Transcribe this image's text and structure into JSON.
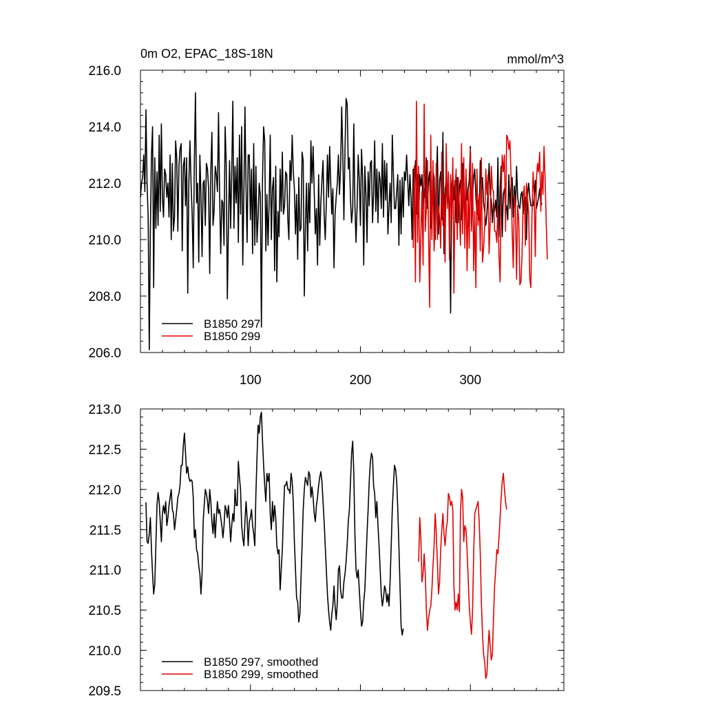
{
  "chart_data": [
    {
      "type": "line",
      "title": "0m O2, EPAC_18S-18N",
      "units": "mmol/m^3",
      "xlim": [
        0,
        385
      ],
      "ylim": [
        206,
        216
      ],
      "xticks": [
        100,
        200,
        300
      ],
      "xtick_labels": [
        "100",
        "200",
        "300"
      ],
      "yticks": [
        206,
        208,
        210,
        212,
        214,
        216
      ],
      "ytick_labels": [
        "206.0",
        "208.0",
        "210.0",
        "212.0",
        "214.0",
        "216.0"
      ],
      "legend_position": "bottom-left",
      "series": [
        {
          "name": "B1850 297",
          "color": "#000000",
          "x_start": 0,
          "values": [
            211.5,
            212.0,
            212.2,
            213.0,
            211.7,
            214.6,
            212.0,
            210.8,
            206.1,
            210.3,
            213.0,
            214.0,
            208.3,
            212.9,
            210.4,
            212.4,
            210.5,
            213.7,
            211.0,
            214.1,
            211.5,
            210.8,
            212.5,
            212.3,
            211.5,
            212.0,
            210.8,
            213.0,
            210.0,
            212.7,
            210.3,
            210.8,
            213.5,
            212.9,
            210.3,
            212.6,
            213.2,
            213.4,
            209.6,
            212.6,
            212.9,
            211.2,
            212.9,
            208.1,
            212.0,
            213.5,
            212.0,
            210.9,
            209.0,
            212.8,
            215.2,
            211.3,
            212.0,
            209.2,
            213.0,
            211.6,
            209.4,
            212.0,
            212.1,
            210.5,
            212.7,
            212.5,
            211.8,
            208.8,
            212.4,
            213.8,
            210.5,
            211.0,
            212.6,
            212.3,
            211.7,
            214.5,
            211.6,
            209.5,
            211.4,
            211.3,
            209.8,
            214.0,
            212.7,
            207.9,
            210.4,
            212.8,
            210.4,
            212.4,
            214.9,
            210.4,
            212.6,
            211.3,
            212.9,
            209.9,
            213.7,
            210.9,
            214.0,
            209.1,
            211.6,
            214.7,
            211.8,
            209.9,
            213.0,
            213.0,
            210.7,
            212.5,
            209.5,
            213.4,
            209.8,
            212.6,
            209.9,
            210.8,
            212.0,
            211.6,
            206.9,
            212.1,
            214.0,
            213.5,
            209.6,
            211.6,
            209.8,
            211.3,
            213.7,
            210.0,
            211.8,
            212.2,
            208.9,
            212.6,
            208.5,
            211.0,
            210.1,
            212.5,
            211.0,
            213.1,
            210.9,
            211.2,
            212.4,
            212.3,
            210.7,
            210.0,
            212.8,
            212.1,
            213.7,
            212.4,
            211.8,
            210.2,
            211.6,
            209.3,
            212.2,
            210.3,
            210.4,
            213.1,
            212.8,
            208.0,
            210.5,
            212.0,
            209.6,
            212.0,
            210.6,
            213.5,
            212.0,
            213.3,
            211.7,
            210.2,
            211.1,
            209.1,
            212.3,
            209.8,
            211.3,
            212.1,
            212.8,
            210.9,
            210.0,
            211.3,
            213.0,
            211.5,
            213.3,
            212.0,
            210.9,
            211.8,
            209.0,
            210.9,
            211.5,
            212.0,
            213.0,
            211.6,
            212.5,
            214.7,
            213.1,
            210.7,
            213.2,
            215.0,
            214.8,
            212.5,
            212.9,
            211.4,
            210.6,
            211.1,
            214.1,
            211.2,
            209.9,
            211.2,
            213.0,
            212.1,
            210.5,
            213.2,
            212.2,
            209.1,
            212.6,
            211.6,
            209.9,
            212.4,
            211.2,
            212.7,
            212.8,
            210.6,
            211.6,
            213.5,
            211.0,
            212.5,
            210.6,
            212.4,
            212.1,
            211.1,
            213.4,
            210.8,
            212.8,
            211.4,
            212.7,
            210.2,
            211.1,
            212.0,
            210.6,
            213.7,
            212.3,
            211.1,
            211.1,
            211.7,
            212.3,
            209.8,
            212.1,
            210.2,
            212.2,
            210.8,
            212.4,
            212.1,
            213.0,
            212.1,
            211.2,
            212.3,
            211.5,
            210.0,
            212.5,
            212.0,
            212.8,
            210.9,
            212.3,
            210.8,
            212.3,
            211.9,
            212.3,
            211.1,
            211.8,
            211.3,
            212.9,
            211.1,
            212.1,
            212.4,
            210.4,
            211.1,
            212.4,
            212.2,
            210.0,
            212.0,
            213.3,
            210.2,
            212.1,
            212.4,
            210.7,
            213.8,
            209.5,
            211.8,
            212.1,
            211.2,
            212.0,
            210.8,
            207.4,
            211.9,
            212.3,
            211.4,
            212.1,
            210.6,
            212.2,
            210.6,
            211.8,
            212.1,
            210.7,
            212.7,
            211.5,
            210.7,
            212.3,
            211.4,
            211.8,
            212.1,
            213.3,
            210.4,
            211.6,
            212.2,
            212.5,
            211.5,
            210.9,
            211.4,
            210.7,
            212.8,
            211.6,
            212.2,
            211.3,
            211.0,
            210.5,
            210.9,
            211.7,
            212.7,
            211.6,
            211.4,
            210.6,
            211.3,
            211.0,
            211.4,
            210.8,
            212.9,
            210.1,
            211.8,
            212.6,
            210.1,
            211.6,
            211.8,
            211.0,
            211.2,
            210.7,
            212.3,
            211.1,
            211.9,
            212.2,
            210.8,
            211.9,
            211.1,
            212.6,
            211.5,
            211.2,
            211.1,
            211.6,
            211.7,
            210.9,
            211.4,
            211.5,
            210.0,
            211.6,
            212.0,
            211.5,
            211.2,
            211.2,
            211.2,
            211.5,
            212.1,
            211.1,
            211.3,
            211.5,
            211.8,
            211.2,
            211.3
          ]
        },
        {
          "name": "B1850 299",
          "color": "#e00000",
          "x_start": 248,
          "values": [
            209.7,
            212.6,
            208.5,
            214.9,
            209.9,
            212.6,
            208.5,
            210.1,
            211.7,
            209.1,
            214.8,
            210.3,
            211.1,
            212.8,
            210.1,
            207.6,
            213.7,
            210.0,
            212.8,
            209.6,
            210.6,
            212.7,
            210.0,
            211.2,
            210.8,
            209.7,
            213.1,
            210.5,
            211.6,
            209.2,
            213.4,
            211.1,
            212.4,
            209.3,
            212.3,
            210.7,
            212.9,
            208.1,
            211.7,
            212.5,
            210.0,
            212.2,
            211.2,
            209.8,
            213.4,
            210.2,
            212.9,
            209.7,
            212.5,
            208.9,
            211.7,
            209.7,
            213.2,
            210.3,
            212.7,
            208.9,
            211.0,
            208.3,
            212.5,
            210.5,
            211.6,
            209.6,
            212.9,
            209.2,
            209.7,
            210.5,
            212.5,
            211.6,
            212.3,
            209.5,
            210.6,
            212.6,
            211.8,
            211.7,
            210.3,
            210.3,
            209.9,
            211.2,
            209.4,
            208.5,
            211.7,
            213.0,
            212.4,
            213.0,
            210.3,
            213.7,
            213.6,
            213.2,
            213.5,
            212.2,
            210.3,
            209.0,
            211.6,
            211.1,
            208.6,
            211.2,
            210.7,
            208.4,
            208.5,
            209.5,
            211.5,
            211.9,
            209.8,
            212.0,
            211.5,
            210.9,
            208.6,
            208.3,
            210.9,
            212.4,
            211.6,
            209.4,
            212.1,
            212.7,
            212.4,
            213.1,
            211.0,
            212.4,
            211.6,
            213.3,
            212.1,
            210.6,
            209.3
          ]
        }
      ]
    },
    {
      "type": "line",
      "title": "",
      "xlim": [
        0,
        385
      ],
      "ylim": [
        209.5,
        213.0
      ],
      "yticks": [
        209.5,
        210.0,
        210.5,
        211.0,
        211.5,
        212.0,
        212.5,
        213.0
      ],
      "ytick_labels": [
        "209.5",
        "210.0",
        "210.5",
        "211.0",
        "211.5",
        "212.0",
        "212.5",
        "213.0"
      ],
      "legend_position": "bottom-left",
      "series": [
        {
          "name": "B1850 297, smoothed",
          "color": "#000000",
          "x_start": 5,
          "values": [
            211.84,
            211.35,
            211.33,
            211.45,
            211.65,
            211.25,
            210.95,
            210.7,
            210.82,
            211.3,
            211.8,
            211.96,
            211.85,
            211.6,
            211.35,
            211.7,
            211.8,
            211.7,
            211.85,
            211.55,
            211.65,
            211.8,
            211.9,
            212.0,
            211.75,
            211.7,
            211.5,
            211.62,
            211.75,
            211.9,
            211.95,
            212.05,
            212.3,
            212.3,
            212.55,
            212.7,
            212.45,
            212.2,
            212.28,
            212.15,
            212.1,
            212.12,
            212.1,
            211.9,
            211.4,
            211.5,
            211.25,
            211.2,
            211.05,
            210.95,
            210.7,
            210.95,
            211.6,
            211.8,
            212.0,
            211.95,
            211.85,
            211.7,
            212.0,
            211.85,
            211.6,
            211.45,
            211.7,
            211.4,
            211.65,
            211.85,
            211.7,
            211.75,
            211.65,
            211.55,
            211.4,
            211.55,
            211.8,
            211.75,
            211.65,
            211.8,
            211.6,
            211.35,
            211.55,
            211.7,
            211.6,
            212.0,
            211.8,
            211.8,
            212.35,
            212.15,
            212.0,
            211.55,
            211.4,
            211.3,
            211.6,
            211.85,
            211.65,
            211.3,
            211.6,
            211.65,
            211.75,
            211.55,
            211.45,
            211.3,
            211.95,
            212.4,
            212.8,
            212.7,
            212.9,
            212.96,
            212.6,
            212.3,
            212.05,
            211.85,
            212.2,
            212.1,
            212.2,
            211.7,
            211.5,
            211.85,
            211.6,
            211.8,
            211.65,
            211.3,
            211.2,
            211.25,
            210.75,
            211.0,
            211.25,
            211.7,
            212.05,
            212.05,
            212.1,
            212.0,
            212.0,
            211.95,
            212.2,
            212.1,
            211.85,
            211.35,
            211.0,
            210.65,
            210.6,
            210.35,
            210.45,
            210.9,
            211.3,
            211.75,
            212.0,
            212.15,
            212.1,
            212.05,
            212.22,
            212.18,
            211.9,
            212.03,
            211.9,
            211.7,
            211.6,
            211.8,
            211.9,
            212.05,
            212.15,
            212.22,
            212.1,
            211.85,
            211.6,
            211.3,
            211.0,
            210.7,
            210.5,
            210.35,
            210.25,
            210.45,
            210.55,
            210.8,
            210.55,
            210.38,
            210.58,
            211.0,
            211.05,
            210.75,
            210.65,
            210.65,
            210.85,
            210.95,
            211.1,
            211.32,
            211.6,
            211.75,
            212.1,
            212.45,
            212.6,
            212.2,
            211.45,
            211.0,
            210.9,
            211.0,
            210.75,
            210.5,
            210.3,
            210.35,
            210.6,
            210.75,
            211.1,
            211.45,
            211.75,
            212.1,
            212.34,
            212.45,
            212.4,
            212.05,
            211.95,
            211.65,
            211.85,
            211.55,
            211.3,
            211.0,
            210.7,
            210.55,
            210.65,
            210.8,
            210.75,
            210.6,
            210.7,
            210.55,
            210.85,
            211.3,
            211.75,
            212.05,
            212.3,
            212.25,
            212.1,
            211.75,
            211.3,
            210.8,
            210.3,
            210.19,
            210.27
          ]
        },
        {
          "name": "B1850 299, smoothed",
          "color": "#e00000",
          "x_start": 253,
          "values": [
            211.1,
            211.65,
            211.4,
            210.85,
            210.95,
            211.2,
            210.95,
            210.5,
            210.25,
            210.4,
            210.5,
            210.55,
            210.75,
            211.05,
            211.3,
            211.7,
            211.45,
            211.1,
            210.7,
            210.85,
            211.25,
            211.5,
            211.7,
            211.45,
            211.3,
            211.5,
            211.6,
            211.95,
            211.9,
            211.8,
            211.85,
            211.75,
            210.8,
            210.5,
            210.6,
            210.5,
            210.7,
            210.48,
            211.7,
            212.0,
            211.9,
            211.35,
            211.55,
            211.5,
            211.25,
            210.9,
            210.55,
            210.35,
            210.2,
            210.5,
            211.2,
            211.7,
            211.75,
            211.8,
            211.85,
            211.6,
            211.2,
            210.6,
            210.2,
            209.95,
            209.85,
            209.65,
            209.7,
            210.0,
            210.25,
            210.05,
            209.88,
            209.95,
            210.4,
            210.8,
            211.0,
            211.25,
            211.2,
            211.4,
            211.65,
            211.9,
            212.1,
            212.2,
            212.0,
            211.85,
            211.75
          ]
        }
      ]
    }
  ]
}
